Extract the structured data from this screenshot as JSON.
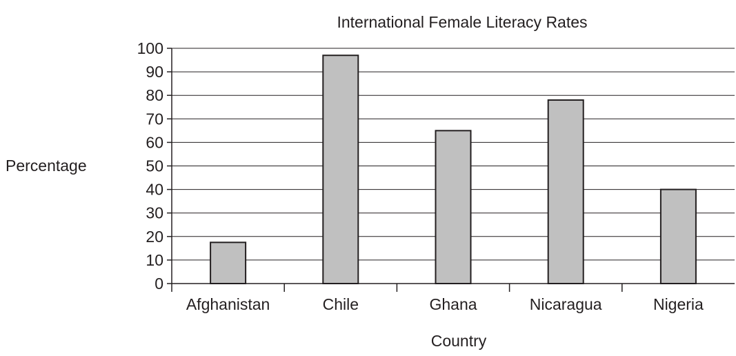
{
  "chart_data": {
    "type": "bar",
    "title": "International Female Literacy Rates",
    "xlabel": "Country",
    "ylabel": "Percentage",
    "categories": [
      "Afghanistan",
      "Chile",
      "Ghana",
      "Nicaragua",
      "Nigeria"
    ],
    "values": [
      17.5,
      97,
      65,
      78,
      40
    ],
    "ylim": [
      0,
      100
    ],
    "yticks": [
      0,
      10,
      20,
      30,
      40,
      50,
      60,
      70,
      80,
      90,
      100
    ],
    "grid": true,
    "legend": "none",
    "colors": {
      "bar_fill": "#c0c0c0",
      "bar_stroke": "#231f20",
      "grid": "#231f20",
      "axis": "#231f20",
      "text": "#231f20"
    }
  }
}
